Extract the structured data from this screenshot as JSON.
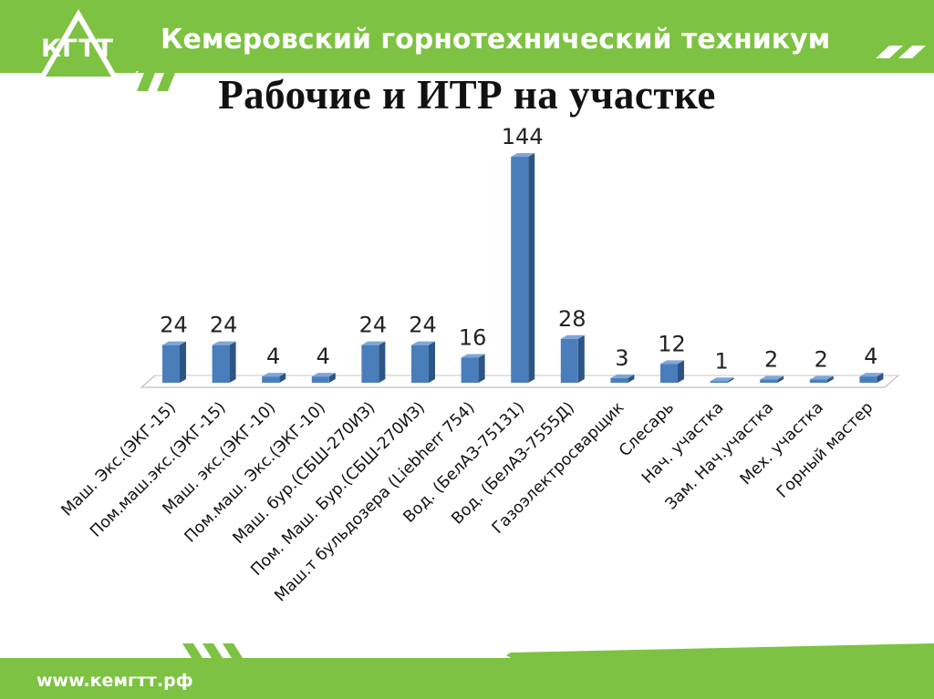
{
  "header": {
    "logo_text": "КГТТ",
    "title": "Кемеровский горнотехнический техникум"
  },
  "slide": {
    "title": "Рабочие и ИТР на участке"
  },
  "footer": {
    "url": "www.кемгтт.рф"
  },
  "colors": {
    "brand_green": "#7dc242",
    "bar_front": "#4a7ebb",
    "bar_side": "#2c5585",
    "bar_top": "#7ea6d6"
  },
  "chart_data": {
    "type": "bar",
    "title": "",
    "xlabel": "",
    "ylabel": "",
    "categories": [
      "Маш. Экс.(ЭКГ-15)",
      "Пом.маш.экс.(ЭКГ-15)",
      "Маш. экс.(ЭКГ-10)",
      "Пом.маш. Экс.(ЭКГ-10)",
      "Маш. бур.(СБШ-270ИЗ)",
      "Пом. Маш. Бур.(СБШ-270ИЗ)",
      "Маш.т бульдозера   (Liebherr 754)",
      "Вод. (БелАЗ-75131)",
      "Вод. (БелАЗ-7555Д)",
      "Газоэлектросварщик",
      "Слесарь",
      "Нач. участка",
      "Зам. Нач.участка",
      "Мех. участка",
      "Горный мастер"
    ],
    "values": [
      24,
      24,
      4,
      4,
      24,
      24,
      16,
      144,
      28,
      3,
      12,
      1,
      2,
      2,
      4
    ],
    "data_labels": [
      "24",
      "24",
      "4",
      "4",
      "24",
      "24",
      "16",
      "144",
      "28",
      "3",
      "12",
      "1",
      "2",
      "2",
      "4"
    ],
    "ylim": [
      0,
      144
    ],
    "grid": false,
    "legend": "none"
  }
}
